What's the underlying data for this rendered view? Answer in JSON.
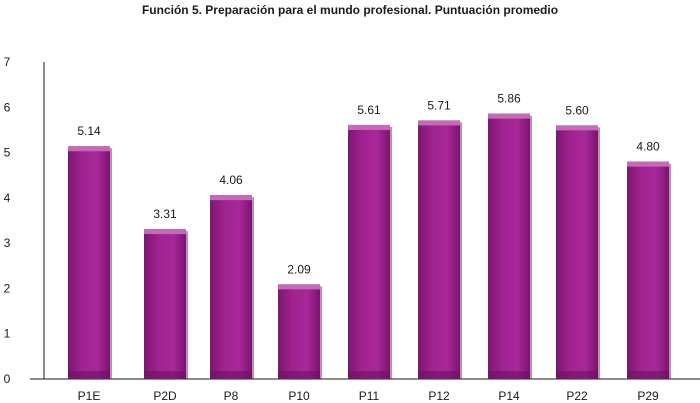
{
  "chart_data": {
    "type": "bar",
    "title": "Función 5. Preparación para el mundo profesional. Puntuación promedio",
    "xlabel": "",
    "ylabel": "",
    "categories": [
      "P1E",
      "P2D",
      "P8",
      "P10",
      "P11",
      "P12",
      "P14",
      "P22",
      "P29"
    ],
    "values": [
      5.14,
      3.31,
      4.06,
      2.09,
      5.61,
      5.71,
      5.86,
      5.6,
      4.8
    ],
    "data_labels": [
      "5.14",
      "3.31",
      "4.06",
      "2.09",
      "5.61",
      "5.71",
      "5.86",
      "5.60",
      "4.80"
    ],
    "ylim": [
      0,
      7
    ],
    "yticks": [
      "0",
      "1",
      "2",
      "3",
      "4",
      "5",
      "6",
      "7"
    ],
    "grid": false,
    "legend": "none",
    "bar_color": "#9b1f8c",
    "bar_highlight_color": "#c36bb8",
    "bar_shadow_color": "#5a1152"
  }
}
